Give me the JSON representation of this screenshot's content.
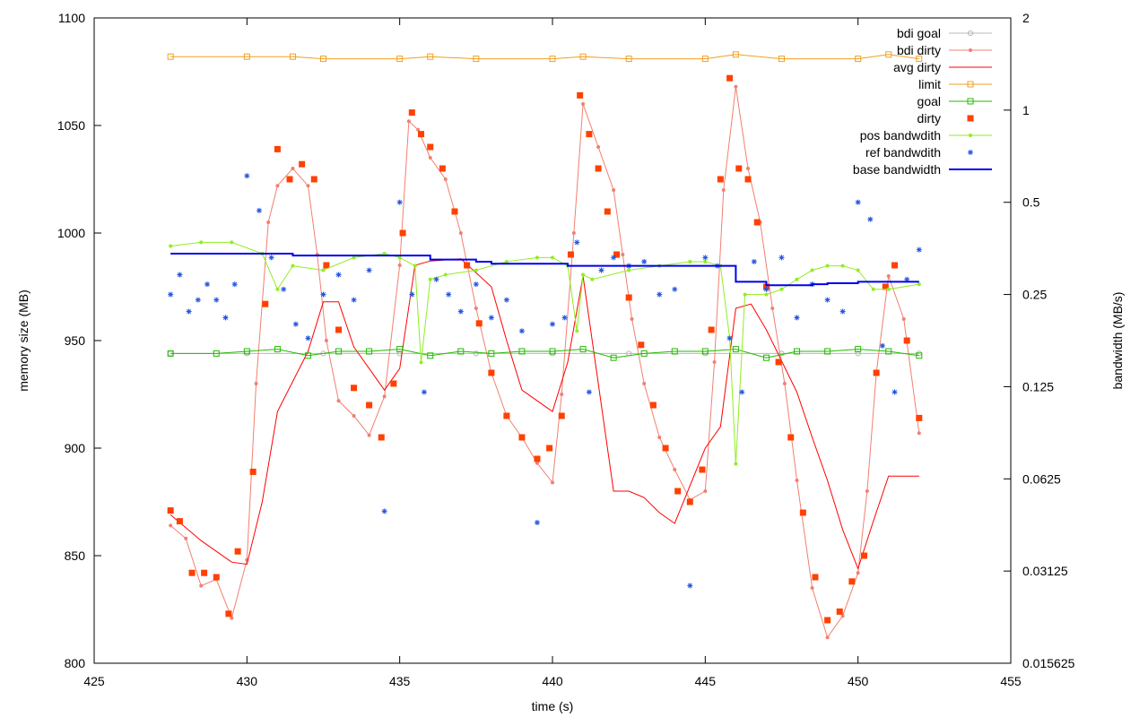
{
  "chart_data": {
    "type": "line",
    "title": "",
    "xlabel": "time (s)",
    "ylabel": "memory size (MB)",
    "y2label": "bandwidth (MB/s)",
    "xlim": [
      425,
      455
    ],
    "ylim": [
      800,
      1100
    ],
    "y2_scale": "log2",
    "y2lim": [
      0.015625,
      2
    ],
    "x_ticks": [
      425,
      430,
      435,
      440,
      445,
      450,
      455
    ],
    "x_tick_labels": [
      "425",
      "430",
      "435",
      "440",
      "445",
      "450",
      "455"
    ],
    "y_ticks": [
      800,
      850,
      900,
      950,
      1000,
      1050,
      1100
    ],
    "y_tick_labels": [
      "800",
      "850",
      "900",
      "950",
      "1000",
      "1050",
      "1100"
    ],
    "y2_ticks": [
      0.015625,
      0.03125,
      0.0625,
      0.125,
      0.25,
      0.5,
      1,
      2
    ],
    "y2_tick_labels": [
      "0.015625",
      "0.03125",
      "0.0625",
      "0.125",
      "0.25",
      "0.5",
      "1",
      "2"
    ],
    "grid": false,
    "legend_position": "top-right",
    "series": [
      {
        "name": "bdi goal",
        "style": "line-circle",
        "color": "#b8b8b8",
        "axis": "y1",
        "x": [
          427.5,
          430,
          432.5,
          435,
          437.5,
          440,
          442.5,
          445,
          447.5,
          450,
          452
        ],
        "y": [
          944,
          944,
          944,
          944,
          944,
          944,
          944,
          944,
          944,
          944,
          944
        ]
      },
      {
        "name": "bdi dirty",
        "style": "line-dot",
        "color": "#f08070",
        "axis": "y1",
        "x": [
          427.5,
          428.0,
          428.5,
          429.0,
          429.5,
          430.0,
          430.3,
          430.7,
          431.0,
          431.5,
          432.0,
          432.3,
          432.6,
          433.0,
          433.5,
          434.0,
          434.5,
          435.0,
          435.3,
          435.6,
          436.0,
          436.5,
          437.0,
          437.5,
          438.0,
          438.5,
          439.0,
          439.5,
          440.0,
          440.3,
          440.7,
          441.0,
          441.5,
          442.0,
          442.3,
          442.6,
          443.0,
          443.5,
          444.0,
          444.5,
          445.0,
          445.3,
          445.6,
          446.0,
          446.4,
          446.8,
          447.2,
          447.6,
          448.0,
          448.5,
          449.0,
          449.5,
          450.0,
          450.3,
          450.6,
          451.0,
          451.5,
          452.0
        ],
        "y": [
          864,
          858,
          836,
          839,
          821,
          848,
          930,
          1005,
          1022,
          1030,
          1022,
          990,
          950,
          922,
          915,
          906,
          924,
          985,
          1052,
          1048,
          1035,
          1025,
          1000,
          965,
          935,
          915,
          905,
          893,
          884,
          925,
          1000,
          1060,
          1040,
          1020,
          990,
          960,
          930,
          905,
          890,
          876,
          880,
          940,
          1020,
          1068,
          1030,
          1005,
          965,
          930,
          885,
          835,
          812,
          822,
          842,
          880,
          935,
          980,
          960,
          907
        ]
      },
      {
        "name": "avg dirty",
        "style": "line",
        "color": "#ff0000",
        "axis": "y1",
        "x": [
          427.5,
          428.5,
          429.5,
          430.0,
          430.5,
          431.0,
          432.0,
          432.5,
          433.0,
          433.5,
          434.5,
          435.0,
          435.5,
          436.0,
          437.0,
          438.0,
          438.5,
          439.0,
          439.5,
          440.0,
          440.5,
          441.0,
          442.0,
          442.5,
          443.0,
          443.5,
          444.0,
          445.0,
          445.5,
          446.0,
          446.5,
          447.0,
          448.0,
          448.5,
          449.0,
          449.5,
          450.0,
          450.5,
          451.0,
          452.0
        ],
        "y": [
          869,
          857,
          847,
          846,
          875,
          917,
          945,
          968,
          968,
          947,
          927,
          937,
          985,
          987,
          988,
          975,
          950,
          927,
          922,
          917,
          940,
          980,
          880,
          880,
          877,
          870,
          865,
          900,
          910,
          965,
          967,
          955,
          926,
          905,
          885,
          862,
          844,
          866,
          887,
          887
        ]
      },
      {
        "name": "limit",
        "style": "line-square",
        "color": "#f0a020",
        "axis": "y1",
        "x": [
          427.5,
          430,
          431.5,
          432.5,
          435,
          436,
          437.5,
          440,
          441,
          442.5,
          445,
          446,
          447.5,
          450,
          451,
          452
        ],
        "y": [
          1082,
          1082,
          1082,
          1081,
          1081,
          1082,
          1081,
          1081,
          1082,
          1081,
          1081,
          1083,
          1081,
          1081,
          1083,
          1081
        ]
      },
      {
        "name": "goal",
        "style": "line-square",
        "color": "#22bb00",
        "axis": "y1",
        "x": [
          427.5,
          429,
          430,
          431,
          432,
          433,
          434,
          435,
          436,
          437,
          438,
          439,
          440,
          441,
          442,
          443,
          444,
          445,
          446,
          447,
          448,
          449,
          450,
          451,
          452
        ],
        "y": [
          944,
          944,
          945,
          946,
          943,
          945,
          945,
          946,
          943,
          945,
          944,
          945,
          945,
          946,
          942,
          944,
          945,
          945,
          946,
          942,
          945,
          945,
          946,
          945,
          943
        ]
      },
      {
        "name": "dirty",
        "style": "points-square",
        "color": "#ff4000",
        "axis": "y1",
        "x": [
          427.5,
          427.8,
          428.2,
          428.6,
          429.0,
          429.4,
          429.7,
          430.2,
          430.6,
          431.0,
          431.4,
          431.8,
          432.2,
          432.6,
          433.0,
          433.5,
          434.0,
          434.4,
          434.8,
          435.1,
          435.4,
          435.7,
          436.0,
          436.4,
          436.8,
          437.2,
          437.6,
          438.0,
          438.5,
          439.0,
          439.5,
          439.9,
          440.3,
          440.6,
          440.9,
          441.2,
          441.5,
          441.8,
          442.1,
          442.5,
          442.9,
          443.3,
          443.7,
          444.1,
          444.5,
          444.9,
          445.2,
          445.5,
          445.8,
          446.1,
          446.4,
          446.7,
          447.0,
          447.4,
          447.8,
          448.2,
          448.6,
          449.0,
          449.4,
          449.8,
          450.2,
          450.6,
          450.9,
          451.2,
          451.6,
          452.0
        ],
        "y": [
          871,
          866,
          842,
          842,
          840,
          823,
          852,
          889,
          967,
          1039,
          1025,
          1032,
          1025,
          985,
          955,
          928,
          920,
          905,
          930,
          1000,
          1056,
          1046,
          1040,
          1030,
          1010,
          985,
          958,
          935,
          915,
          905,
          895,
          900,
          915,
          990,
          1064,
          1046,
          1030,
          1010,
          990,
          970,
          948,
          920,
          900,
          880,
          875,
          890,
          955,
          1025,
          1072,
          1030,
          1025,
          1005,
          975,
          940,
          905,
          870,
          840,
          820,
          824,
          838,
          850,
          935,
          975,
          985,
          950,
          914
        ]
      },
      {
        "name": "pos bandwdith",
        "style": "line-dot",
        "color": "#90ee20",
        "axis": "y2",
        "x": [
          427.5,
          428.5,
          429.5,
          430.5,
          431.0,
          431.5,
          432.5,
          433.5,
          434.5,
          435.0,
          435.5,
          435.7,
          436.0,
          436.5,
          437.5,
          438.5,
          439.5,
          440.0,
          440.5,
          440.8,
          441.0,
          441.3,
          442.5,
          443.5,
          444.5,
          445.0,
          445.5,
          445.8,
          446.0,
          446.3,
          447.0,
          447.5,
          448.0,
          448.5,
          449.0,
          449.5,
          450.0,
          450.5,
          451.0,
          452.0
        ],
        "y": [
          0.36,
          0.37,
          0.37,
          0.34,
          0.26,
          0.31,
          0.3,
          0.33,
          0.34,
          0.33,
          0.31,
          0.15,
          0.28,
          0.29,
          0.3,
          0.32,
          0.33,
          0.33,
          0.31,
          0.19,
          0.29,
          0.28,
          0.3,
          0.31,
          0.32,
          0.32,
          0.31,
          0.18,
          0.07,
          0.25,
          0.25,
          0.26,
          0.28,
          0.3,
          0.31,
          0.31,
          0.3,
          0.26,
          0.26,
          0.27
        ]
      },
      {
        "name": "ref bandwdith",
        "style": "points-star",
        "color": "#2255dd",
        "axis": "y2",
        "x": [
          427.5,
          427.8,
          428.1,
          428.4,
          428.7,
          429.0,
          429.3,
          429.6,
          430.0,
          430.4,
          430.8,
          431.2,
          431.6,
          432.0,
          432.5,
          433.0,
          433.5,
          434.0,
          434.5,
          435.0,
          435.4,
          435.8,
          436.2,
          436.6,
          437.0,
          437.5,
          438.0,
          438.5,
          439.0,
          439.5,
          440.0,
          440.4,
          440.8,
          441.2,
          441.6,
          442.0,
          442.5,
          443.0,
          443.5,
          444.0,
          444.5,
          445.0,
          445.4,
          445.8,
          446.2,
          446.6,
          447.0,
          447.5,
          448.0,
          448.5,
          449.0,
          449.5,
          450.0,
          450.4,
          450.8,
          451.2,
          451.6,
          452.0
        ],
        "y": [
          0.25,
          0.29,
          0.22,
          0.24,
          0.27,
          0.24,
          0.21,
          0.27,
          0.61,
          0.47,
          0.33,
          0.26,
          0.2,
          0.18,
          0.25,
          0.29,
          0.24,
          0.3,
          0.049,
          0.5,
          0.25,
          0.12,
          0.28,
          0.25,
          0.22,
          0.27,
          0.21,
          0.24,
          0.19,
          0.045,
          0.2,
          0.21,
          0.37,
          0.12,
          0.3,
          0.33,
          0.31,
          0.32,
          0.25,
          0.26,
          0.028,
          0.33,
          0.31,
          0.18,
          0.12,
          0.32,
          0.26,
          0.33,
          0.21,
          0.27,
          0.24,
          0.22,
          0.5,
          0.44,
          0.17,
          0.12,
          0.28,
          0.35
        ]
      },
      {
        "name": "base bandwidth",
        "style": "line",
        "color": "#0000ee",
        "axis": "y2",
        "x": [
          427.5,
          430.0,
          431.5,
          433.0,
          435.0,
          436.0,
          437.5,
          438.0,
          440.0,
          440.5,
          442.0,
          443.0,
          445.0,
          445.8,
          446.0,
          447.0,
          448.5,
          449.0,
          450.0,
          452.0
        ],
        "y": [
          0.34,
          0.34,
          0.335,
          0.335,
          0.335,
          0.325,
          0.32,
          0.315,
          0.315,
          0.31,
          0.31,
          0.31,
          0.31,
          0.31,
          0.275,
          0.268,
          0.27,
          0.272,
          0.275,
          0.275
        ]
      }
    ]
  }
}
